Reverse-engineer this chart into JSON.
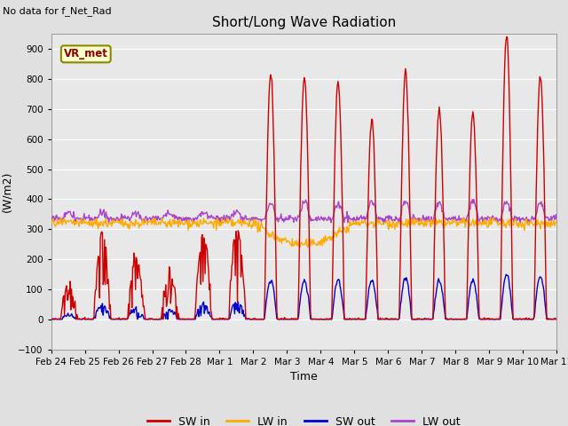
{
  "title": "Short/Long Wave Radiation",
  "subtitle": "No data for f_Net_Rad",
  "xlabel": "Time",
  "ylabel": "(W/m2)",
  "ylim": [
    -100,
    950
  ],
  "yticks": [
    -100,
    0,
    100,
    200,
    300,
    400,
    500,
    600,
    700,
    800,
    900
  ],
  "fig_bg_color": "#e0e0e0",
  "plot_bg_color": "#e8e8e8",
  "grid_color": "#ffffff",
  "colors": {
    "SW_in": "#cc0000",
    "LW_in": "#ffaa00",
    "SW_out": "#0000cc",
    "LW_out": "#aa44cc"
  },
  "vr_box_facecolor": "#ffffcc",
  "vr_box_edgecolor": "#888800",
  "vr_text_color": "#880000",
  "subtitle_color": "#000000",
  "tick_label_fontsize": 7.5,
  "axis_label_fontsize": 9,
  "title_fontsize": 11
}
